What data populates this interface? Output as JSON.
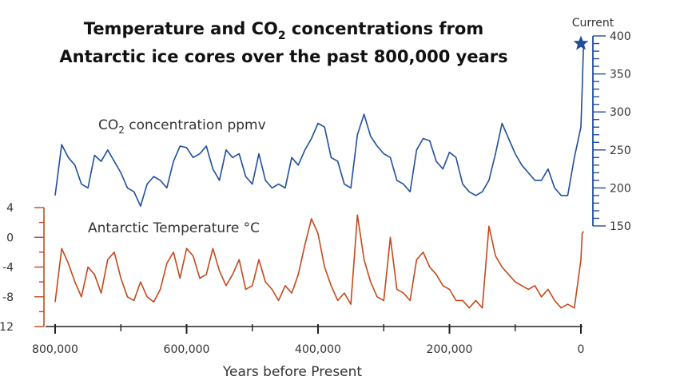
{
  "chart_data": {
    "type": "line",
    "title_line1_a": "Temperature and CO",
    "title_line1_sub": "2",
    "title_line1_b": " concentrations from",
    "title_line2": "Antarctic ice cores over the past 800,000 years",
    "xlabel": "Years before Present",
    "x_ticks": [
      "800,000",
      "600,000",
      "400,000",
      "200,000",
      "0"
    ],
    "xlim": [
      800000,
      0
    ],
    "series": [
      {
        "label_a": "CO",
        "label_sub": "2",
        "label_b": " concentration ppmv",
        "color": "#1f4e9c",
        "ylim": [
          150,
          400
        ],
        "y_ticks": [
          "400",
          "350",
          "300",
          "250",
          "200",
          "150"
        ],
        "x": [
          800000,
          790000,
          780000,
          770000,
          760000,
          750000,
          740000,
          730000,
          720000,
          710000,
          700000,
          690000,
          680000,
          670000,
          660000,
          650000,
          640000,
          630000,
          620000,
          610000,
          600000,
          590000,
          580000,
          570000,
          560000,
          550000,
          540000,
          530000,
          520000,
          510000,
          500000,
          490000,
          480000,
          470000,
          460000,
          450000,
          440000,
          430000,
          420000,
          410000,
          400000,
          390000,
          380000,
          370000,
          360000,
          350000,
          340000,
          330000,
          320000,
          310000,
          300000,
          290000,
          280000,
          270000,
          260000,
          250000,
          240000,
          230000,
          220000,
          210000,
          200000,
          190000,
          180000,
          170000,
          160000,
          150000,
          140000,
          130000,
          120000,
          110000,
          100000,
          90000,
          80000,
          70000,
          60000,
          50000,
          40000,
          30000,
          20000,
          10000,
          0,
          -2000,
          -4000
        ],
        "values": [
          190,
          257,
          240,
          230,
          205,
          200,
          243,
          235,
          250,
          235,
          220,
          200,
          195,
          176,
          205,
          215,
          210,
          200,
          235,
          255,
          253,
          240,
          245,
          255,
          225,
          210,
          250,
          240,
          245,
          215,
          205,
          245,
          210,
          200,
          205,
          200,
          240,
          230,
          250,
          265,
          285,
          280,
          240,
          235,
          205,
          200,
          270,
          297,
          268,
          255,
          245,
          240,
          210,
          205,
          195,
          250,
          265,
          262,
          235,
          225,
          247,
          240,
          205,
          195,
          190,
          195,
          210,
          245,
          285,
          265,
          245,
          230,
          220,
          210,
          210,
          225,
          200,
          190,
          190,
          240,
          280,
          330,
          390
        ]
      },
      {
        "label": "Antarctic Temperature °C",
        "color": "#c4481c",
        "ylim": [
          -12,
          4
        ],
        "y_ticks": [
          "4",
          "0",
          "-4",
          "-8",
          "-12"
        ],
        "x": [
          800000,
          790000,
          780000,
          770000,
          760000,
          750000,
          740000,
          730000,
          720000,
          710000,
          700000,
          690000,
          680000,
          670000,
          660000,
          650000,
          640000,
          630000,
          620000,
          610000,
          600000,
          590000,
          580000,
          570000,
          560000,
          550000,
          540000,
          530000,
          520000,
          510000,
          500000,
          490000,
          480000,
          470000,
          460000,
          450000,
          440000,
          430000,
          420000,
          410000,
          400000,
          390000,
          380000,
          370000,
          360000,
          350000,
          340000,
          330000,
          320000,
          310000,
          300000,
          290000,
          280000,
          270000,
          260000,
          250000,
          240000,
          230000,
          220000,
          210000,
          200000,
          190000,
          180000,
          170000,
          160000,
          150000,
          140000,
          130000,
          120000,
          110000,
          100000,
          90000,
          80000,
          70000,
          60000,
          50000,
          40000,
          30000,
          20000,
          10000,
          0,
          -2000,
          -4000
        ],
        "values": [
          -8.7,
          -1.5,
          -3.5,
          -6.0,
          -8.0,
          -4.0,
          -5.0,
          -7.5,
          -3.0,
          -2.0,
          -5.5,
          -8.0,
          -8.5,
          -6.0,
          -8.0,
          -8.7,
          -7.0,
          -3.5,
          -2.0,
          -5.5,
          -1.5,
          -2.5,
          -5.5,
          -5.0,
          -1.5,
          -4.5,
          -6.5,
          -5.0,
          -3.0,
          -7.0,
          -6.5,
          -3.0,
          -6.0,
          -7.0,
          -8.5,
          -6.5,
          -7.5,
          -5.0,
          -1.0,
          2.5,
          0.5,
          -4.0,
          -6.5,
          -8.5,
          -7.5,
          -9.0,
          3.0,
          -3.0,
          -6.0,
          -8.0,
          -8.5,
          0.0,
          -7.0,
          -7.5,
          -8.5,
          -3.0,
          -2.0,
          -4.0,
          -5.0,
          -6.5,
          -7.0,
          -8.5,
          -8.5,
          -9.5,
          -8.5,
          -9.5,
          1.5,
          -2.5,
          -4.0,
          -5.0,
          -6.0,
          -6.5,
          -7.0,
          -6.5,
          -8.0,
          -7.0,
          -8.5,
          -9.5,
          -9.0,
          -9.5,
          -3.0,
          0.5,
          0.8
        ]
      }
    ],
    "annotations": [
      {
        "text": "Current",
        "marker": "star",
        "series": "CO2",
        "x": 0,
        "y": 390
      }
    ]
  }
}
